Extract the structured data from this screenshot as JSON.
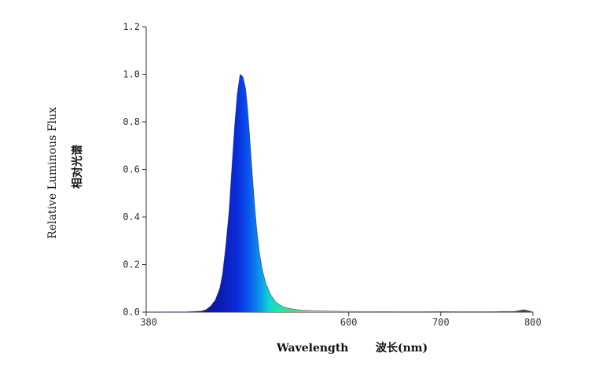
{
  "chart_data": {
    "type": "area",
    "title": "",
    "xlabel": "Wavelength",
    "xlabel_cn": "波长(nm)",
    "ylabel": "Relative Luminous Flux",
    "ylabel_cn": "相对光谱",
    "xlim": [
      380,
      800
    ],
    "ylim": [
      0,
      1.2
    ],
    "x_ticks": [
      "380",
      "600",
      "700",
      "800"
    ],
    "x_tick_values": [
      380,
      600,
      700,
      800
    ],
    "y_ticks": [
      "0.0",
      "0.2",
      "0.4",
      "0.6",
      "0.8",
      "1.0",
      "1.2"
    ],
    "y_tick_values": [
      0,
      0.2,
      0.4,
      0.6,
      0.8,
      1.0,
      1.2
    ],
    "series": [
      {
        "x": [
          400,
          420,
          440,
          445,
          450,
          455,
          460,
          463,
          466,
          470,
          473,
          476,
          479,
          482,
          485,
          488,
          490,
          492,
          494,
          496,
          498,
          500,
          503,
          506,
          510,
          515,
          520,
          525,
          530,
          540,
          550,
          560,
          580,
          600,
          620,
          640,
          660,
          680,
          700,
          720,
          750,
          780,
          785,
          790,
          795,
          800
        ],
        "values": [
          0.0,
          0.0,
          0.004,
          0.01,
          0.025,
          0.05,
          0.1,
          0.16,
          0.26,
          0.42,
          0.6,
          0.78,
          0.92,
          1.0,
          0.99,
          0.94,
          0.86,
          0.76,
          0.65,
          0.54,
          0.44,
          0.35,
          0.25,
          0.18,
          0.12,
          0.075,
          0.045,
          0.03,
          0.02,
          0.012,
          0.008,
          0.006,
          0.004,
          0.003,
          0.002,
          0.002,
          0.001,
          0.001,
          0.002,
          0.001,
          0.001,
          0.003,
          0.006,
          0.01,
          0.006,
          0.0
        ]
      }
    ],
    "grid": false,
    "legend": "none"
  }
}
